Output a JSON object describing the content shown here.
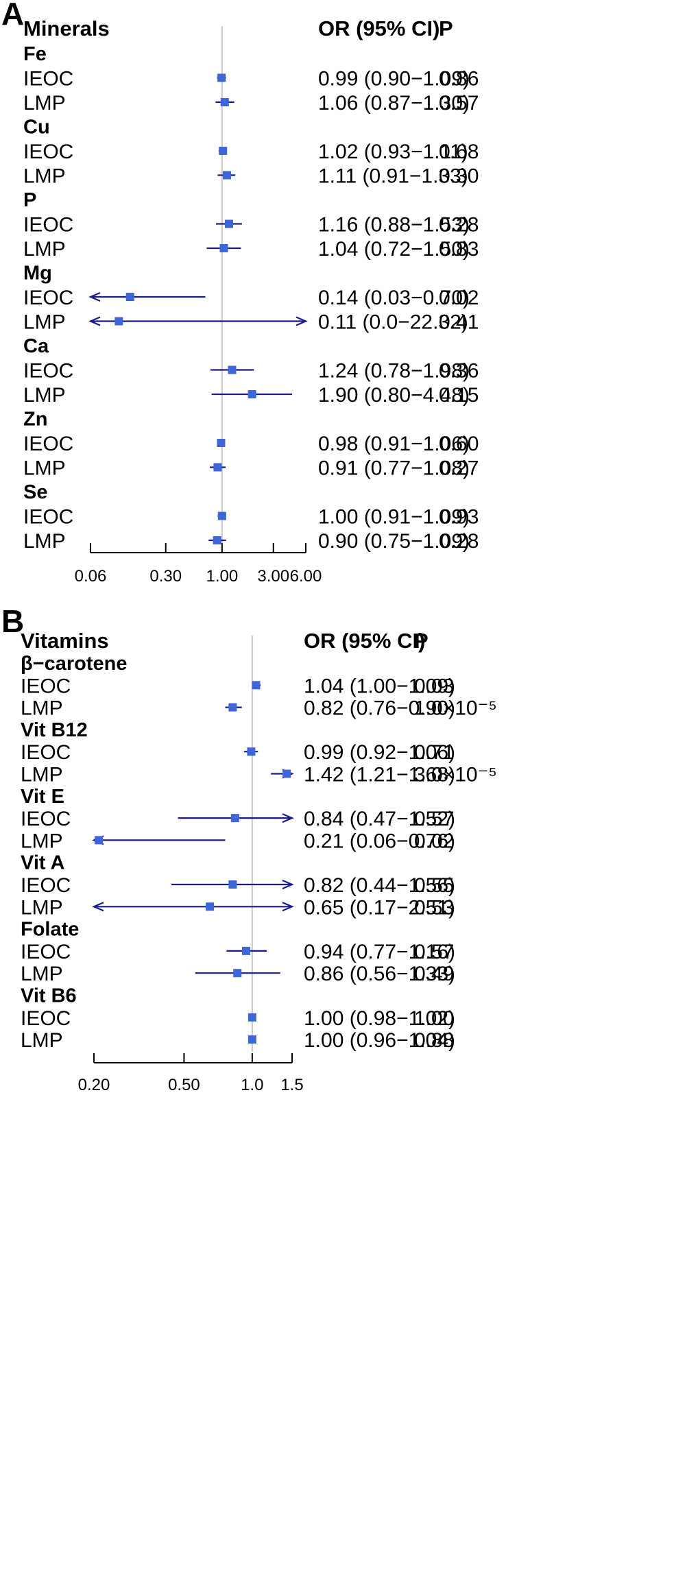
{
  "chart_data": [
    {
      "type": "forest",
      "panel_label": "A",
      "header": {
        "group_col": "Minerals",
        "or_col": "OR (95% CI)",
        "p_col": "P"
      },
      "axis": {
        "scale": "log",
        "min": 0.06,
        "max": 6.0,
        "reference": 1.0,
        "ticks": [
          0.06,
          0.3,
          1.0,
          3.0,
          6.0
        ],
        "tick_labels": [
          "0.06",
          "0.30",
          "1.00",
          "3.00",
          "6.00"
        ]
      },
      "groups": [
        {
          "name": "Fe",
          "rows": [
            {
              "label": "IEOC",
              "or": 0.99,
              "lo": 0.9,
              "hi": 1.09,
              "or_text": "0.99 (0.90−1.09)",
              "p": "0.86"
            },
            {
              "label": "LMP",
              "or": 1.06,
              "lo": 0.87,
              "hi": 1.3,
              "or_text": "1.06 (0.87−1.30)",
              "p": "0.57"
            }
          ]
        },
        {
          "name": "Cu",
          "rows": [
            {
              "label": "IEOC",
              "or": 1.02,
              "lo": 0.93,
              "hi": 1.11,
              "or_text": "1.02 (0.93−1.11)",
              "p": "0.68"
            },
            {
              "label": "LMP",
              "or": 1.11,
              "lo": 0.91,
              "hi": 1.33,
              "or_text": "1.11 (0.91−1.33)",
              "p": "0.30"
            }
          ]
        },
        {
          "name": "P",
          "rows": [
            {
              "label": "IEOC",
              "or": 1.16,
              "lo": 0.88,
              "hi": 1.53,
              "or_text": "1.16 (0.88−1.53)",
              "p": "0.28"
            },
            {
              "label": "LMP",
              "or": 1.04,
              "lo": 0.72,
              "hi": 1.5,
              "or_text": "1.04 (0.72−1.50)",
              "p": "0.83"
            }
          ]
        },
        {
          "name": "Mg",
          "rows": [
            {
              "label": "IEOC",
              "or": 0.14,
              "lo": 0.03,
              "hi": 0.7,
              "or_text": "0.14 (0.03−0.70)",
              "p": "0.02"
            },
            {
              "label": "LMP",
              "or": 0.11,
              "lo": 0.0,
              "hi": 22.32,
              "or_text": "0.11 (0.0−22.32)",
              "p": "0.41"
            }
          ]
        },
        {
          "name": "Ca",
          "rows": [
            {
              "label": "IEOC",
              "or": 1.24,
              "lo": 0.78,
              "hi": 1.98,
              "or_text": "1.24 (0.78−1.98)",
              "p": "0.36"
            },
            {
              "label": "LMP",
              "or": 1.9,
              "lo": 0.8,
              "hi": 4.48,
              "or_text": "1.90 (0.80−4.48)",
              "p": "0.15"
            }
          ]
        },
        {
          "name": "Zn",
          "rows": [
            {
              "label": "IEOC",
              "or": 0.98,
              "lo": 0.91,
              "hi": 1.06,
              "or_text": "0.98 (0.91−1.06)",
              "p": "0.60"
            },
            {
              "label": "LMP",
              "or": 0.91,
              "lo": 0.77,
              "hi": 1.08,
              "or_text": "0.91 (0.77−1.08)",
              "p": "0.27"
            }
          ]
        },
        {
          "name": "Se",
          "rows": [
            {
              "label": "IEOC",
              "or": 1.0,
              "lo": 0.91,
              "hi": 1.09,
              "or_text": "1.00 (0.91−1.09)",
              "p": "0.93"
            },
            {
              "label": "LMP",
              "or": 0.9,
              "lo": 0.75,
              "hi": 1.09,
              "or_text": "0.90 (0.75−1.09)",
              "p": "0.28"
            }
          ]
        }
      ]
    },
    {
      "type": "forest",
      "panel_label": "B",
      "header": {
        "group_col": "Vitamins",
        "or_col": "OR (95% CI)",
        "p_col": "P"
      },
      "axis": {
        "scale": "log",
        "min": 0.2,
        "max": 1.5,
        "reference": 1.0,
        "ticks": [
          0.2,
          0.5,
          1.0,
          1.5
        ],
        "tick_labels": [
          "0.20",
          "0.50",
          "1.0",
          "1.5"
        ]
      },
      "groups": [
        {
          "name": "β−carotene",
          "rows": [
            {
              "label": "IEOC",
              "or": 1.04,
              "lo": 1.0,
              "hi": 1.09,
              "or_text": "1.04 (1.00−1.09)",
              "p": "0.03"
            },
            {
              "label": "LMP",
              "or": 0.82,
              "lo": 0.76,
              "hi": 0.9,
              "or_text": "0.82 (0.76−0.90)",
              "p": "1.0×10⁻⁵"
            }
          ]
        },
        {
          "name": "Vit B12",
          "rows": [
            {
              "label": "IEOC",
              "or": 0.99,
              "lo": 0.92,
              "hi": 1.06,
              "or_text": "0.99 (0.92−1.06)",
              "p": "0.71"
            },
            {
              "label": "LMP",
              "or": 1.42,
              "lo": 1.21,
              "hi": 1.68,
              "or_text": "1.42 (1.21−1.68)",
              "p": "3.0×10⁻⁵"
            }
          ]
        },
        {
          "name": "Vit E",
          "rows": [
            {
              "label": "IEOC",
              "or": 0.84,
              "lo": 0.47,
              "hi": 1.52,
              "or_text": "0.84 (0.47−1.52)",
              "p": "0.57"
            },
            {
              "label": "LMP",
              "or": 0.21,
              "lo": 0.06,
              "hi": 0.76,
              "or_text": "0.21 (0.06−0.76)",
              "p": "0.02"
            }
          ]
        },
        {
          "name": "Vit A",
          "rows": [
            {
              "label": "IEOC",
              "or": 0.82,
              "lo": 0.44,
              "hi": 1.56,
              "or_text": "0.82 (0.44−1.56)",
              "p": "0.55"
            },
            {
              "label": "LMP",
              "or": 0.65,
              "lo": 0.17,
              "hi": 2.51,
              "or_text": "0.65 (0.17−2.51)",
              "p": "0.53"
            }
          ]
        },
        {
          "name": "Folate",
          "rows": [
            {
              "label": "IEOC",
              "or": 0.94,
              "lo": 0.77,
              "hi": 1.16,
              "or_text": "0.94 (0.77−1.16)",
              "p": "0.57"
            },
            {
              "label": "LMP",
              "or": 0.86,
              "lo": 0.56,
              "hi": 1.33,
              "or_text": "0.86 (0.56−1.33)",
              "p": "0.49"
            }
          ]
        },
        {
          "name": "Vit B6",
          "rows": [
            {
              "label": "IEOC",
              "or": 1.0,
              "lo": 0.98,
              "hi": 1.02,
              "or_text": "1.00 (0.98−1.02)",
              "p": "1.00"
            },
            {
              "label": "LMP",
              "or": 1.0,
              "lo": 0.96,
              "hi": 1.04,
              "or_text": "1.00 (0.96−1.04)",
              "p": "0.88"
            }
          ]
        }
      ]
    }
  ],
  "colors": {
    "point": "#3f66d6",
    "ci_line": "#1b1b8c",
    "reference_line": "#c8c8c8",
    "axis": "#000000"
  }
}
